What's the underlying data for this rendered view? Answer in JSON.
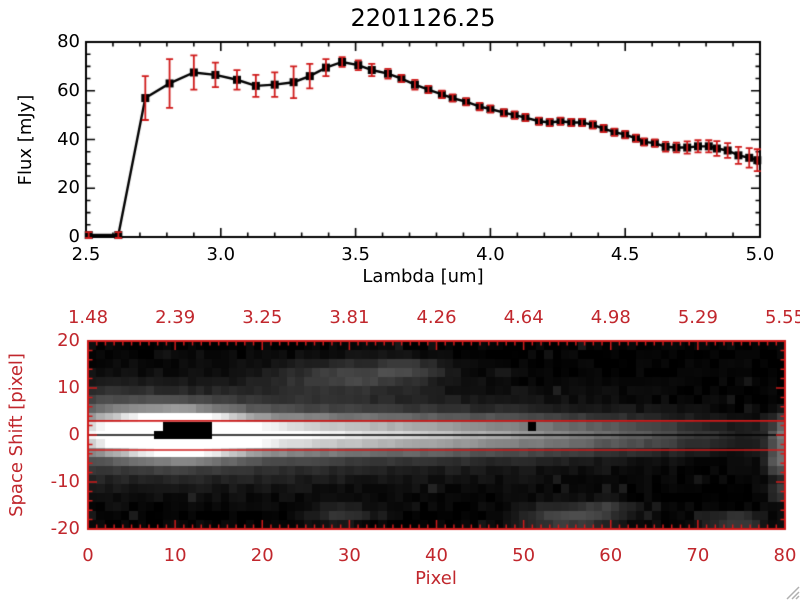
{
  "colors": {
    "red_text": "#c1272d",
    "red_line": "#cf1b1b",
    "plot_black": "#000000",
    "background": "#ffffff",
    "grip_gray": "#b0b0b0"
  },
  "chart_data": [
    {
      "type": "line",
      "title": "2201126.25",
      "xlabel": "Lambda [um]",
      "ylabel": "Flux [mJy]",
      "xlim": [
        2.5,
        5.0
      ],
      "ylim": [
        0,
        80
      ],
      "xticks": [
        2.5,
        3.0,
        3.5,
        4.0,
        4.5,
        5.0
      ],
      "xtick_labels": [
        "2.5",
        "3.0",
        "3.5",
        "4.0",
        "4.5",
        "5.0"
      ],
      "x_minor_step": 0.1,
      "yticks": [
        0,
        20,
        40,
        60,
        80
      ],
      "ytick_labels": [
        "0",
        "20",
        "40",
        "60",
        "80"
      ],
      "y_minor_step": 5,
      "marker": "filled-square",
      "line_color": "#000000",
      "errorbar_color": "#cf1b1b",
      "grid": false,
      "series": [
        {
          "name": "flux",
          "x": [
            2.51,
            2.62,
            2.72,
            2.81,
            2.9,
            2.98,
            3.06,
            3.13,
            3.2,
            3.27,
            3.33,
            3.39,
            3.45,
            3.51,
            3.56,
            3.62,
            3.67,
            3.72,
            3.77,
            3.82,
            3.86,
            3.91,
            3.96,
            4.0,
            4.05,
            4.09,
            4.13,
            4.18,
            4.22,
            4.26,
            4.3,
            4.34,
            4.38,
            4.42,
            4.46,
            4.5,
            4.54,
            4.57,
            4.61,
            4.65,
            4.69,
            4.73,
            4.77,
            4.81,
            4.84,
            4.88,
            4.92,
            4.96,
            4.99
          ],
          "y": [
            0.8,
            0.8,
            57,
            63,
            67.5,
            66.5,
            64.5,
            62,
            62.5,
            63.5,
            66,
            69.5,
            71.8,
            70.5,
            68.5,
            67,
            65,
            62.5,
            60.5,
            58.5,
            57,
            55.5,
            53.5,
            52.5,
            51,
            50,
            49,
            47.5,
            47,
            47.5,
            47,
            47,
            46,
            44.5,
            43,
            42,
            40.5,
            39,
            38.5,
            37,
            36.7,
            36.7,
            37.2,
            37.2,
            36.3,
            35.5,
            33.5,
            32.5,
            31.5
          ],
          "yerr": [
            1.2,
            1.2,
            9,
            10,
            7,
            5,
            4,
            4.5,
            5,
            6.5,
            5,
            3.5,
            2,
            2,
            2.5,
            2,
            1.5,
            2,
            1.5,
            1.5,
            1.5,
            1.5,
            1.5,
            1.5,
            1.5,
            1.5,
            1.5,
            1.5,
            1.5,
            1.5,
            1.5,
            1.5,
            1.5,
            1.5,
            1.5,
            1.5,
            1.5,
            1.5,
            1.5,
            2,
            2,
            2.5,
            2.5,
            2.5,
            3,
            3,
            3.5,
            4,
            4.5
          ]
        }
      ]
    },
    {
      "type": "heatmap",
      "xlabel": "Pixel",
      "ylabel": "Space Shift [pixel]",
      "xlim": [
        0,
        80
      ],
      "ylim": [
        -20,
        20
      ],
      "xticks": [
        0,
        10,
        20,
        30,
        40,
        50,
        60,
        70,
        80
      ],
      "xtick_labels": [
        "0",
        "10",
        "20",
        "30",
        "40",
        "50",
        "60",
        "70",
        "80"
      ],
      "x_minor_step": 1,
      "yticks": [
        20,
        10,
        0,
        -10,
        -20
      ],
      "ytick_labels": [
        "20",
        "10",
        "0",
        "-10",
        "-20"
      ],
      "y_minor_step": 2,
      "top_ticks": [
        0,
        10,
        20,
        30,
        40,
        50,
        60,
        70,
        80
      ],
      "top_tick_labels": [
        "1.48",
        "2.39",
        "3.25",
        "3.81",
        "4.26",
        "4.64",
        "4.98",
        "5.29",
        "5.55"
      ],
      "axis_color": "#cf1b1b",
      "aperture_lines_y": [
        3.0,
        -3.2
      ],
      "trace_line_y": 0,
      "colormap": "grayscale",
      "image_model": {
        "grid": [
          84,
          21
        ],
        "gamma": 0.9,
        "band_sigma": 2.6,
        "band_profile": [
          [
            0,
            0.5
          ],
          [
            5,
            0.82
          ],
          [
            10,
            1.0
          ],
          [
            15,
            0.92
          ],
          [
            20,
            0.78
          ],
          [
            30,
            0.68
          ],
          [
            40,
            0.58
          ],
          [
            48,
            0.48
          ],
          [
            56,
            0.38
          ],
          [
            64,
            0.26
          ],
          [
            70,
            0.16
          ],
          [
            75,
            0.08
          ],
          [
            80,
            0.05
          ]
        ],
        "shelf_sigma": 6.3,
        "shelf_amp": 0.35,
        "shelf_profile": [
          [
            0,
            0.95
          ],
          [
            10,
            1.0
          ],
          [
            22,
            0.8
          ],
          [
            35,
            0.55
          ],
          [
            48,
            0.35
          ],
          [
            60,
            0.18
          ],
          [
            70,
            0.08
          ],
          [
            80,
            0.03
          ]
        ],
        "core": {
          "x": 10.5,
          "y": 0.3,
          "sx": 4.5,
          "sy": 3.0,
          "amp": 1.2
        },
        "blobs": [
          {
            "x": 30,
            "y": 12.5,
            "sx": 6,
            "sy": 2.5,
            "amp": 0.2
          },
          {
            "x": 37,
            "y": 14,
            "sx": 3,
            "sy": 1.5,
            "amp": 0.15
          },
          {
            "x": 3,
            "y": 6,
            "sx": 4,
            "sy": 3,
            "amp": 0.1
          },
          {
            "x": 29,
            "y": -17,
            "sx": 2.5,
            "sy": 1.5,
            "amp": 0.18
          },
          {
            "x": 55,
            "y": -17.5,
            "sx": 4,
            "sy": 2,
            "amp": 0.26
          },
          {
            "x": 60,
            "y": -15.5,
            "sx": 2,
            "sy": 1.2,
            "amp": 0.14
          },
          {
            "x": 79.5,
            "y": -6,
            "sx": 1.2,
            "sy": 2,
            "amp": 0.35
          },
          {
            "x": 79.5,
            "y": -12,
            "sx": 1,
            "sy": 1.5,
            "amp": 0.22
          },
          {
            "x": 80,
            "y": 0,
            "sx": 1.2,
            "sy": 3,
            "amp": 0.4
          },
          {
            "x": 74,
            "y": -18.5,
            "sx": 2.5,
            "sy": 1.5,
            "amp": 0.22
          }
        ],
        "saturated_rects": [
          [
            8.2,
            -0.6,
            14.2,
            2.4
          ],
          [
            7.3,
            0.0,
            8.2,
            1.2
          ],
          [
            50.2,
            1.8,
            51.3,
            2.9
          ]
        ],
        "noise_seed": 7,
        "noise_level": 0.05,
        "speckle_prob": 0.05
      }
    }
  ],
  "window": {
    "resize_grip": "diagonal-hatch"
  }
}
